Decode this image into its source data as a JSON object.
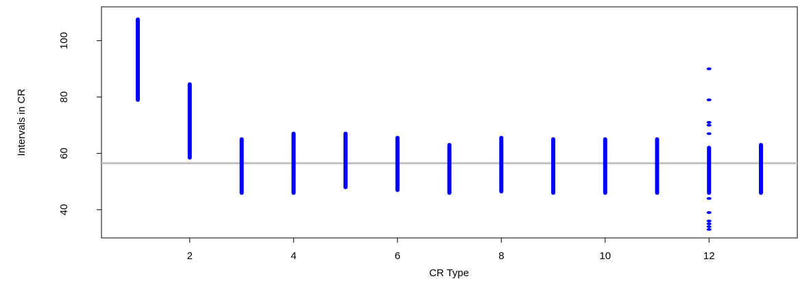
{
  "chart_data": {
    "type": "scatter",
    "title": "",
    "xlabel": "CR Type",
    "ylabel": "Intervals in CR",
    "xlim": [
      0.3,
      13.7
    ],
    "ylim": [
      30,
      112
    ],
    "x_ticks": [
      2,
      4,
      6,
      8,
      10,
      12
    ],
    "x_tick_labels": [
      "2",
      "4",
      "6",
      "8",
      "10",
      "12"
    ],
    "y_ticks": [
      40,
      60,
      80,
      100
    ],
    "y_tick_labels": [
      "40",
      "60",
      "80",
      "100"
    ],
    "reference_line": {
      "y": 56.5,
      "color": "#c0c0c0"
    },
    "point_color": "#0000ff",
    "grid": false,
    "ranges": [
      {
        "x": 1,
        "min": 79,
        "max": 107.5
      },
      {
        "x": 2,
        "min": 58.5,
        "max": 84.5
      },
      {
        "x": 3,
        "min": 46,
        "max": 65
      },
      {
        "x": 4,
        "min": 46,
        "max": 67
      },
      {
        "x": 5,
        "min": 48,
        "max": 67
      },
      {
        "x": 6,
        "min": 47,
        "max": 65.5
      },
      {
        "x": 7,
        "min": 46,
        "max": 63
      },
      {
        "x": 8,
        "min": 46.5,
        "max": 65.5
      },
      {
        "x": 9,
        "min": 46,
        "max": 65
      },
      {
        "x": 10,
        "min": 46,
        "max": 65
      },
      {
        "x": 11,
        "min": 46,
        "max": 65
      },
      {
        "x": 12,
        "min": 46,
        "max": 62
      },
      {
        "x": 13,
        "min": 46,
        "max": 63
      }
    ],
    "outliers": [
      {
        "x": 12,
        "y": 90
      },
      {
        "x": 12,
        "y": 79
      },
      {
        "x": 12,
        "y": 71
      },
      {
        "x": 12,
        "y": 70
      },
      {
        "x": 12,
        "y": 67
      },
      {
        "x": 12,
        "y": 44
      },
      {
        "x": 12,
        "y": 39
      },
      {
        "x": 12,
        "y": 36
      },
      {
        "x": 12,
        "y": 35
      },
      {
        "x": 12,
        "y": 34
      },
      {
        "x": 12,
        "y": 33
      }
    ]
  }
}
